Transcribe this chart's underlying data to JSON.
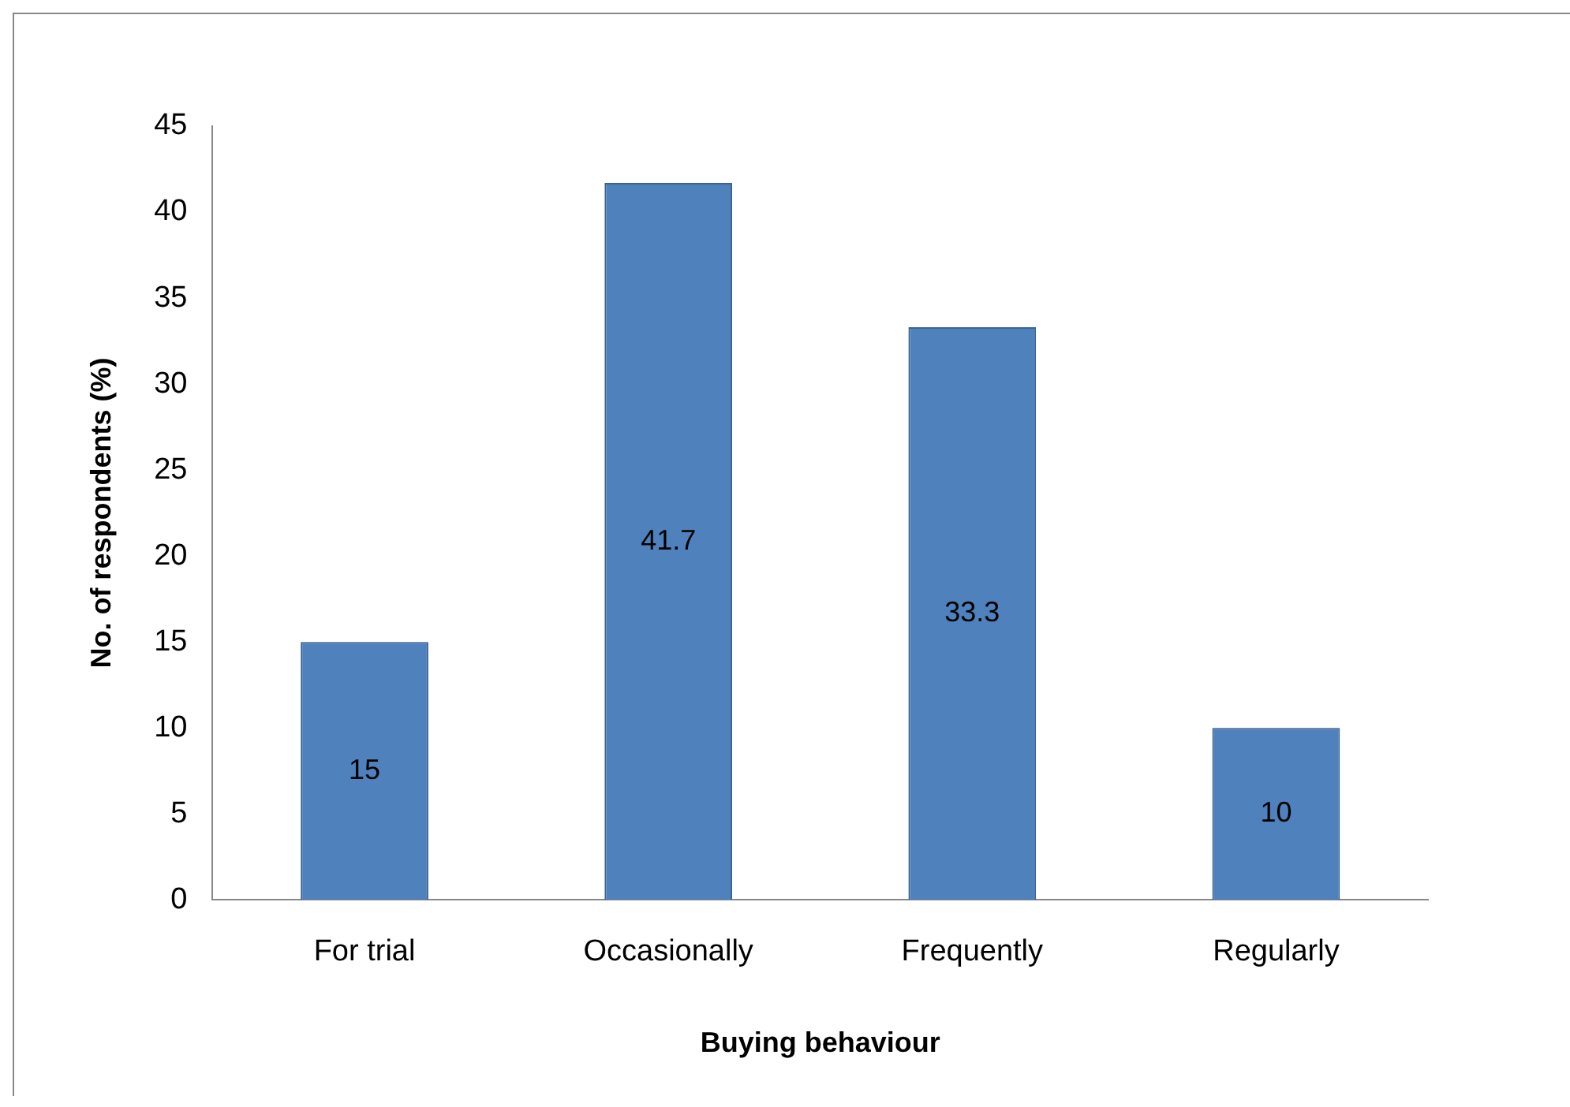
{
  "chart_data": {
    "type": "bar",
    "xlabel": "Buying behaviour",
    "ylabel": "No. of respondents (%)",
    "categories": [
      "For trial",
      "Occasionally",
      "Frequently",
      "Regularly"
    ],
    "values": [
      15,
      41.7,
      33.3,
      10
    ],
    "color": "#4f81bd",
    "ylim": [
      0,
      45
    ],
    "yticks": [
      0,
      5,
      10,
      15,
      20,
      25,
      30,
      35,
      40,
      45
    ],
    "grid": false,
    "legend": false,
    "data_labels": true
  }
}
